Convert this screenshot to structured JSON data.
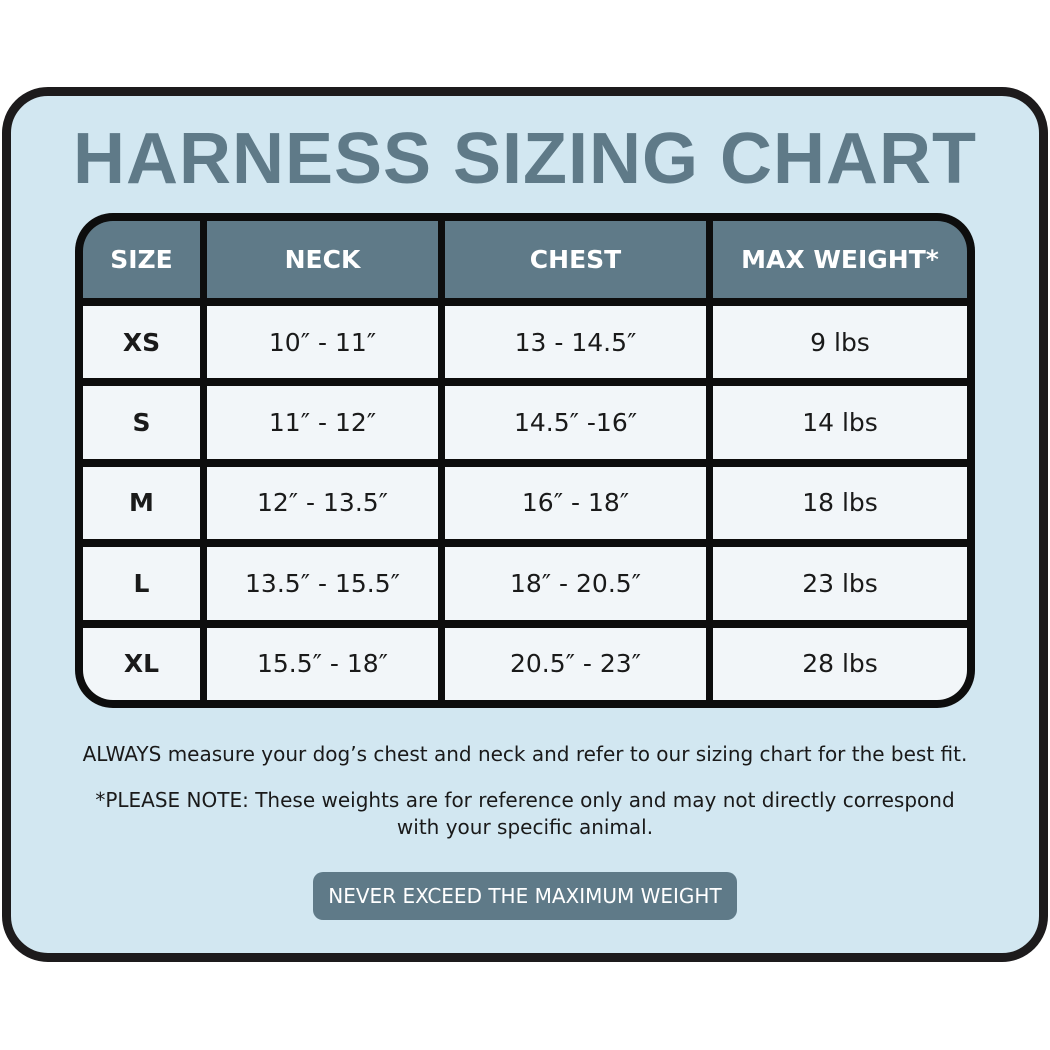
{
  "title": "HARNESS SIZING CHART",
  "table": {
    "headers": [
      "SIZE",
      "NECK",
      "CHEST",
      "MAX WEIGHT*"
    ],
    "rows": [
      [
        "XS",
        "10″ - 11″",
        "13 - 14.5″",
        "9 lbs"
      ],
      [
        "S",
        "11″ - 12″",
        "14.5″ -16″",
        "14 lbs"
      ],
      [
        "M",
        "12″ - 13.5″",
        "16″ - 18″",
        "18 lbs"
      ],
      [
        "L",
        "13.5″ - 15.5″",
        "18″ - 20.5″",
        "23 lbs"
      ],
      [
        "XL",
        "15.5″ - 18″",
        "20.5″ - 23″",
        "28 lbs"
      ]
    ]
  },
  "notes": {
    "measure": "ALWAYS measure your dog’s chest and neck and refer to our sizing chart for the best fit.",
    "disclaimer_line1": "*PLEASE NOTE: These weights are for reference only and may not directly correspond",
    "disclaimer_line2": "with your specific animal."
  },
  "warning_button": "NEVER EXCEED THE MAXIMUM WEIGHT",
  "colors": {
    "background": "#d2e7f1",
    "accent": "#5f7a88",
    "border": "#1d1b1c"
  }
}
